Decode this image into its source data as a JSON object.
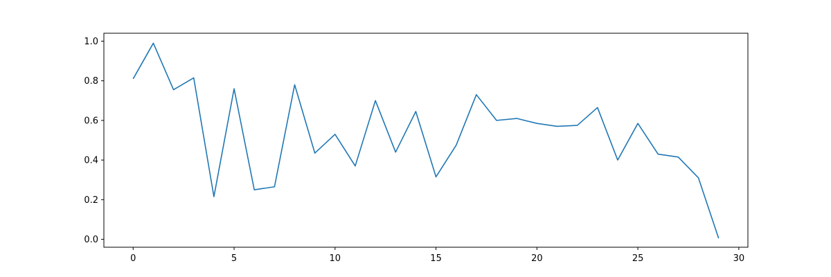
{
  "chart_data": {
    "type": "line",
    "title": "",
    "xlabel": "",
    "ylabel": "",
    "xlim": [
      -1.45,
      30.45
    ],
    "ylim": [
      -0.04,
      1.04
    ],
    "xticks": [
      0,
      5,
      10,
      15,
      20,
      25,
      30
    ],
    "xtick_labels": [
      "0",
      "5",
      "10",
      "15",
      "20",
      "25",
      "30"
    ],
    "yticks": [
      0.0,
      0.2,
      0.4,
      0.6,
      0.8,
      1.0
    ],
    "ytick_labels": [
      "0.0",
      "0.2",
      "0.4",
      "0.6",
      "0.8",
      "1.0"
    ],
    "grid": false,
    "legend": "none",
    "series": [
      {
        "color": "#1f77b4",
        "x": [
          0,
          1,
          2,
          3,
          4,
          5,
          6,
          7,
          8,
          9,
          10,
          11,
          12,
          13,
          14,
          15,
          16,
          17,
          18,
          19,
          20,
          21,
          22,
          23,
          24,
          25,
          26,
          27,
          28,
          29
        ],
        "y": [
          0.81,
          0.99,
          0.755,
          0.815,
          0.215,
          0.76,
          0.25,
          0.265,
          0.78,
          0.435,
          0.53,
          0.37,
          0.7,
          0.44,
          0.645,
          0.315,
          0.475,
          0.73,
          0.6,
          0.61,
          0.585,
          0.57,
          0.575,
          0.665,
          0.4,
          0.585,
          0.43,
          0.415,
          0.31,
          0.005
        ]
      }
    ]
  }
}
